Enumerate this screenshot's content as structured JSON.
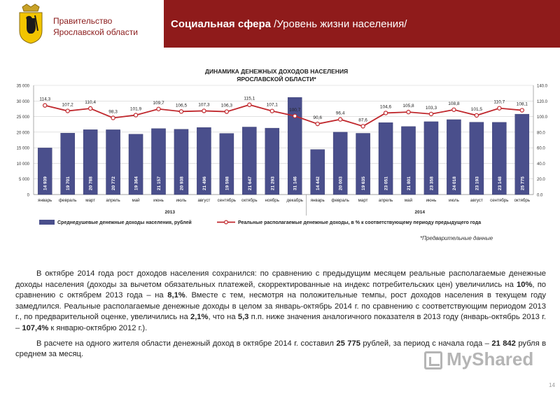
{
  "header": {
    "gov_line1": "Правительство",
    "gov_line2": "Ярославской области",
    "title_bold": "Социальная сфера",
    "title_sub": " /Уровень жизни населения/"
  },
  "colors": {
    "banner": "#8f1b1b",
    "bar": "#4a4f8c",
    "line": "#c0282d",
    "marker_fill": "#ffffff"
  },
  "chart_data": {
    "type": "bar",
    "title": "ДИНАМИКА ДЕНЕЖНЫХ ДОХОДОВ НАСЕЛЕНИЯ\nЯРОСЛАВСКОЙ ОБЛАСТИ*",
    "categories": [
      "январь",
      "февраль",
      "март",
      "апрель",
      "май",
      "июнь",
      "июль",
      "август",
      "сентябрь",
      "октябрь",
      "ноябрь",
      "декабрь",
      "январь",
      "февраль",
      "март",
      "апрель",
      "май",
      "июнь",
      "июль",
      "август",
      "сентябрь",
      "октябрь"
    ],
    "years": [
      {
        "label": "2013",
        "count": 12
      },
      {
        "label": "2014",
        "count": 10
      }
    ],
    "series": [
      {
        "name": "Среднедушевые денежные доходы населения, рублей",
        "type": "bar",
        "axis": "left",
        "values": [
          14939,
          19701,
          20788,
          20772,
          19364,
          21157,
          20938,
          21496,
          19598,
          21647,
          21293,
          31146,
          14442,
          20003,
          19635,
          23051,
          21801,
          23358,
          24018,
          23193,
          23148,
          25775
        ],
        "labels": [
          "14 939",
          "19 701",
          "20 788",
          "20 772",
          "19 364",
          "21 157",
          "20 938",
          "21 496",
          "19 598",
          "21 647",
          "21 293",
          "31 146",
          "14 442",
          "20 003",
          "19 635",
          "23 051",
          "21 801",
          "23 358",
          "24 018",
          "23 193",
          "23 148",
          "25 775"
        ]
      },
      {
        "name": "Реальные располагаемые денежные доходы, в % к соответствующему периоду предыдущего года",
        "type": "line",
        "axis": "right",
        "values": [
          114.3,
          107.2,
          110.4,
          98.3,
          101.9,
          109.7,
          106.5,
          107.3,
          106.3,
          115.1,
          107.1,
          100.7,
          90.6,
          96.4,
          87.6,
          104.6,
          105.8,
          103.3,
          108.8,
          101.5,
          110.7,
          108.1
        ],
        "labels": [
          "114,3",
          "107,2",
          "110,4",
          "98,3",
          "101,9",
          "109,7",
          "106,5",
          "107,3",
          "106,3",
          "115,1",
          "107,1",
          "100,7",
          "90,6",
          "96,4",
          "87,6",
          "104,6",
          "105,8",
          "103,3",
          "108,8",
          "101,5",
          "110,7",
          "108,1"
        ]
      }
    ],
    "ylim_left": [
      0,
      35000
    ],
    "yticks_left": [
      "0",
      "5 000",
      "10 000",
      "15 000",
      "20 000",
      "25 000",
      "30 000",
      "35 000"
    ],
    "ylim_right": [
      0,
      140
    ],
    "yticks_right": [
      "0.0",
      "20.0",
      "40.0",
      "60.0",
      "80.0",
      "100.0",
      "120.0",
      "140.0"
    ],
    "grid": true,
    "legend": "bottom",
    "footnote": "*Предварительные данные"
  },
  "text": {
    "p1_a": "В октябре 2014 года рост доходов населения сохранился: по сравнению с предыдущим месяцем реальные располагаемые денежные доходы населения (доходы за вычетом обязательных платежей, скорректированные на индекс потребительских цен) увеличились на ",
    "p1_b1": "10%",
    "p1_c": ", по сравнению с октябрем 2013 года – на ",
    "p1_b2": "8,1%",
    "p1_d": ". Вместе с тем, несмотря на положительные темпы, рост доходов населения в текущем году замедлился. Реальные располагаемые денежные доходы в целом за январь-октябрь 2014 г. по сравнению с соответствующим периодом 2013 г., по предварительной оценке, увеличились на ",
    "p1_b3": "2,1%",
    "p1_e": ", что на ",
    "p1_b4": "5,3",
    "p1_f": " п.п. ниже значения аналогичного показателя в 2013 году (январь-октябрь 2013 г. – ",
    "p1_b5": "107,4%",
    "p1_g": " к январю-октябрю 2012 г.).",
    "p2_a": "В расчете на одного жителя области денежный доход в октябре 2014 г. составил ",
    "p2_b1": "25 775",
    "p2_c": " рублей, за период с начала года – ",
    "p2_b2": "21 842",
    "p2_d": " рубля в среднем за месяц."
  },
  "watermark": "MyShared",
  "page_number": "14"
}
